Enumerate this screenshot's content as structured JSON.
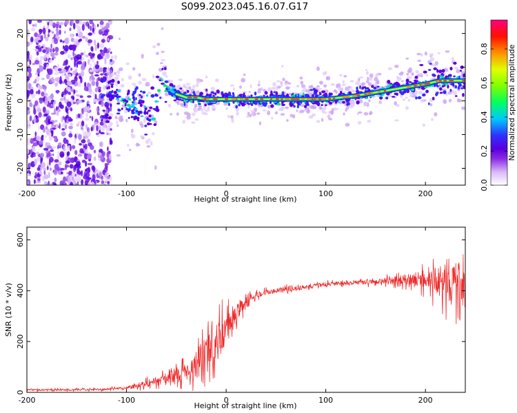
{
  "title": "S099.2023.045.16.07.G17",
  "chart_data": [
    {
      "type": "heatmap",
      "title": "S099.2023.045.16.07.G17",
      "xlabel": "Height of straight line (km)",
      "ylabel": "Frequency (Hz)",
      "xlim": [
        -200,
        240
      ],
      "ylim": [
        -25,
        24
      ],
      "xticks": [
        "-200",
        "-100",
        "0",
        "100",
        "200"
      ],
      "yticks": [
        "-20",
        "-10",
        "0",
        "10",
        "20"
      ],
      "grid": false,
      "colorbar": {
        "label": "Normalized spectral amplitude",
        "range": [
          0,
          0.97
        ],
        "ticks": [
          "0.0",
          "0.2",
          "0.4",
          "0.6",
          "0.8"
        ],
        "colors": [
          "#ffffff",
          "#d8b8f8",
          "#8a2be2",
          "#5a00e0",
          "#2f30ff",
          "#00c8ff",
          "#00ff40",
          "#a0ff00",
          "#ffff00",
          "#ff8000",
          "#ff0000",
          "#ff0080"
        ]
      },
      "ridge": {
        "x": [
          -120,
          -110,
          -100,
          -90,
          -80,
          -72,
          -65,
          -60,
          -50,
          -40,
          -30,
          -20,
          0,
          50,
          100,
          130,
          140,
          160,
          180,
          200,
          215,
          230,
          240
        ],
        "y": [
          1,
          2,
          0,
          -3,
          -2,
          -5,
          8,
          4,
          2,
          1,
          1,
          0.5,
          0.5,
          0.5,
          0.5,
          1.5,
          2,
          3,
          4,
          5,
          6,
          6,
          6
        ]
      }
    },
    {
      "type": "line",
      "xlabel": "Height of straight line (km)",
      "ylabel": "SNR (10 * v/v)",
      "xlim": [
        -200,
        240
      ],
      "ylim": [
        0,
        650
      ],
      "xticks": [
        "-200",
        "-100",
        "0",
        "100",
        "200"
      ],
      "yticks": [
        "0",
        "200",
        "400",
        "600"
      ],
      "color": "#ee2a2a",
      "grid": false,
      "series": [
        {
          "x": [
            -200,
            -150,
            -120,
            -100,
            -80,
            -60,
            -40,
            -30,
            -20,
            -10,
            0,
            10,
            20,
            30,
            50,
            80,
            100,
            120,
            150,
            170,
            190,
            200,
            210,
            220,
            230,
            240
          ],
          "mean": [
            10,
            10,
            12,
            18,
            35,
            55,
            80,
            110,
            150,
            190,
            250,
            310,
            360,
            385,
            400,
            415,
            425,
            430,
            435,
            440,
            445,
            445,
            440,
            435,
            430,
            420
          ],
          "spread": [
            8,
            8,
            8,
            12,
            30,
            45,
            70,
            120,
            160,
            170,
            120,
            80,
            40,
            25,
            20,
            18,
            18,
            18,
            20,
            35,
            60,
            80,
            110,
            150,
            180,
            200
          ]
        }
      ]
    }
  ]
}
